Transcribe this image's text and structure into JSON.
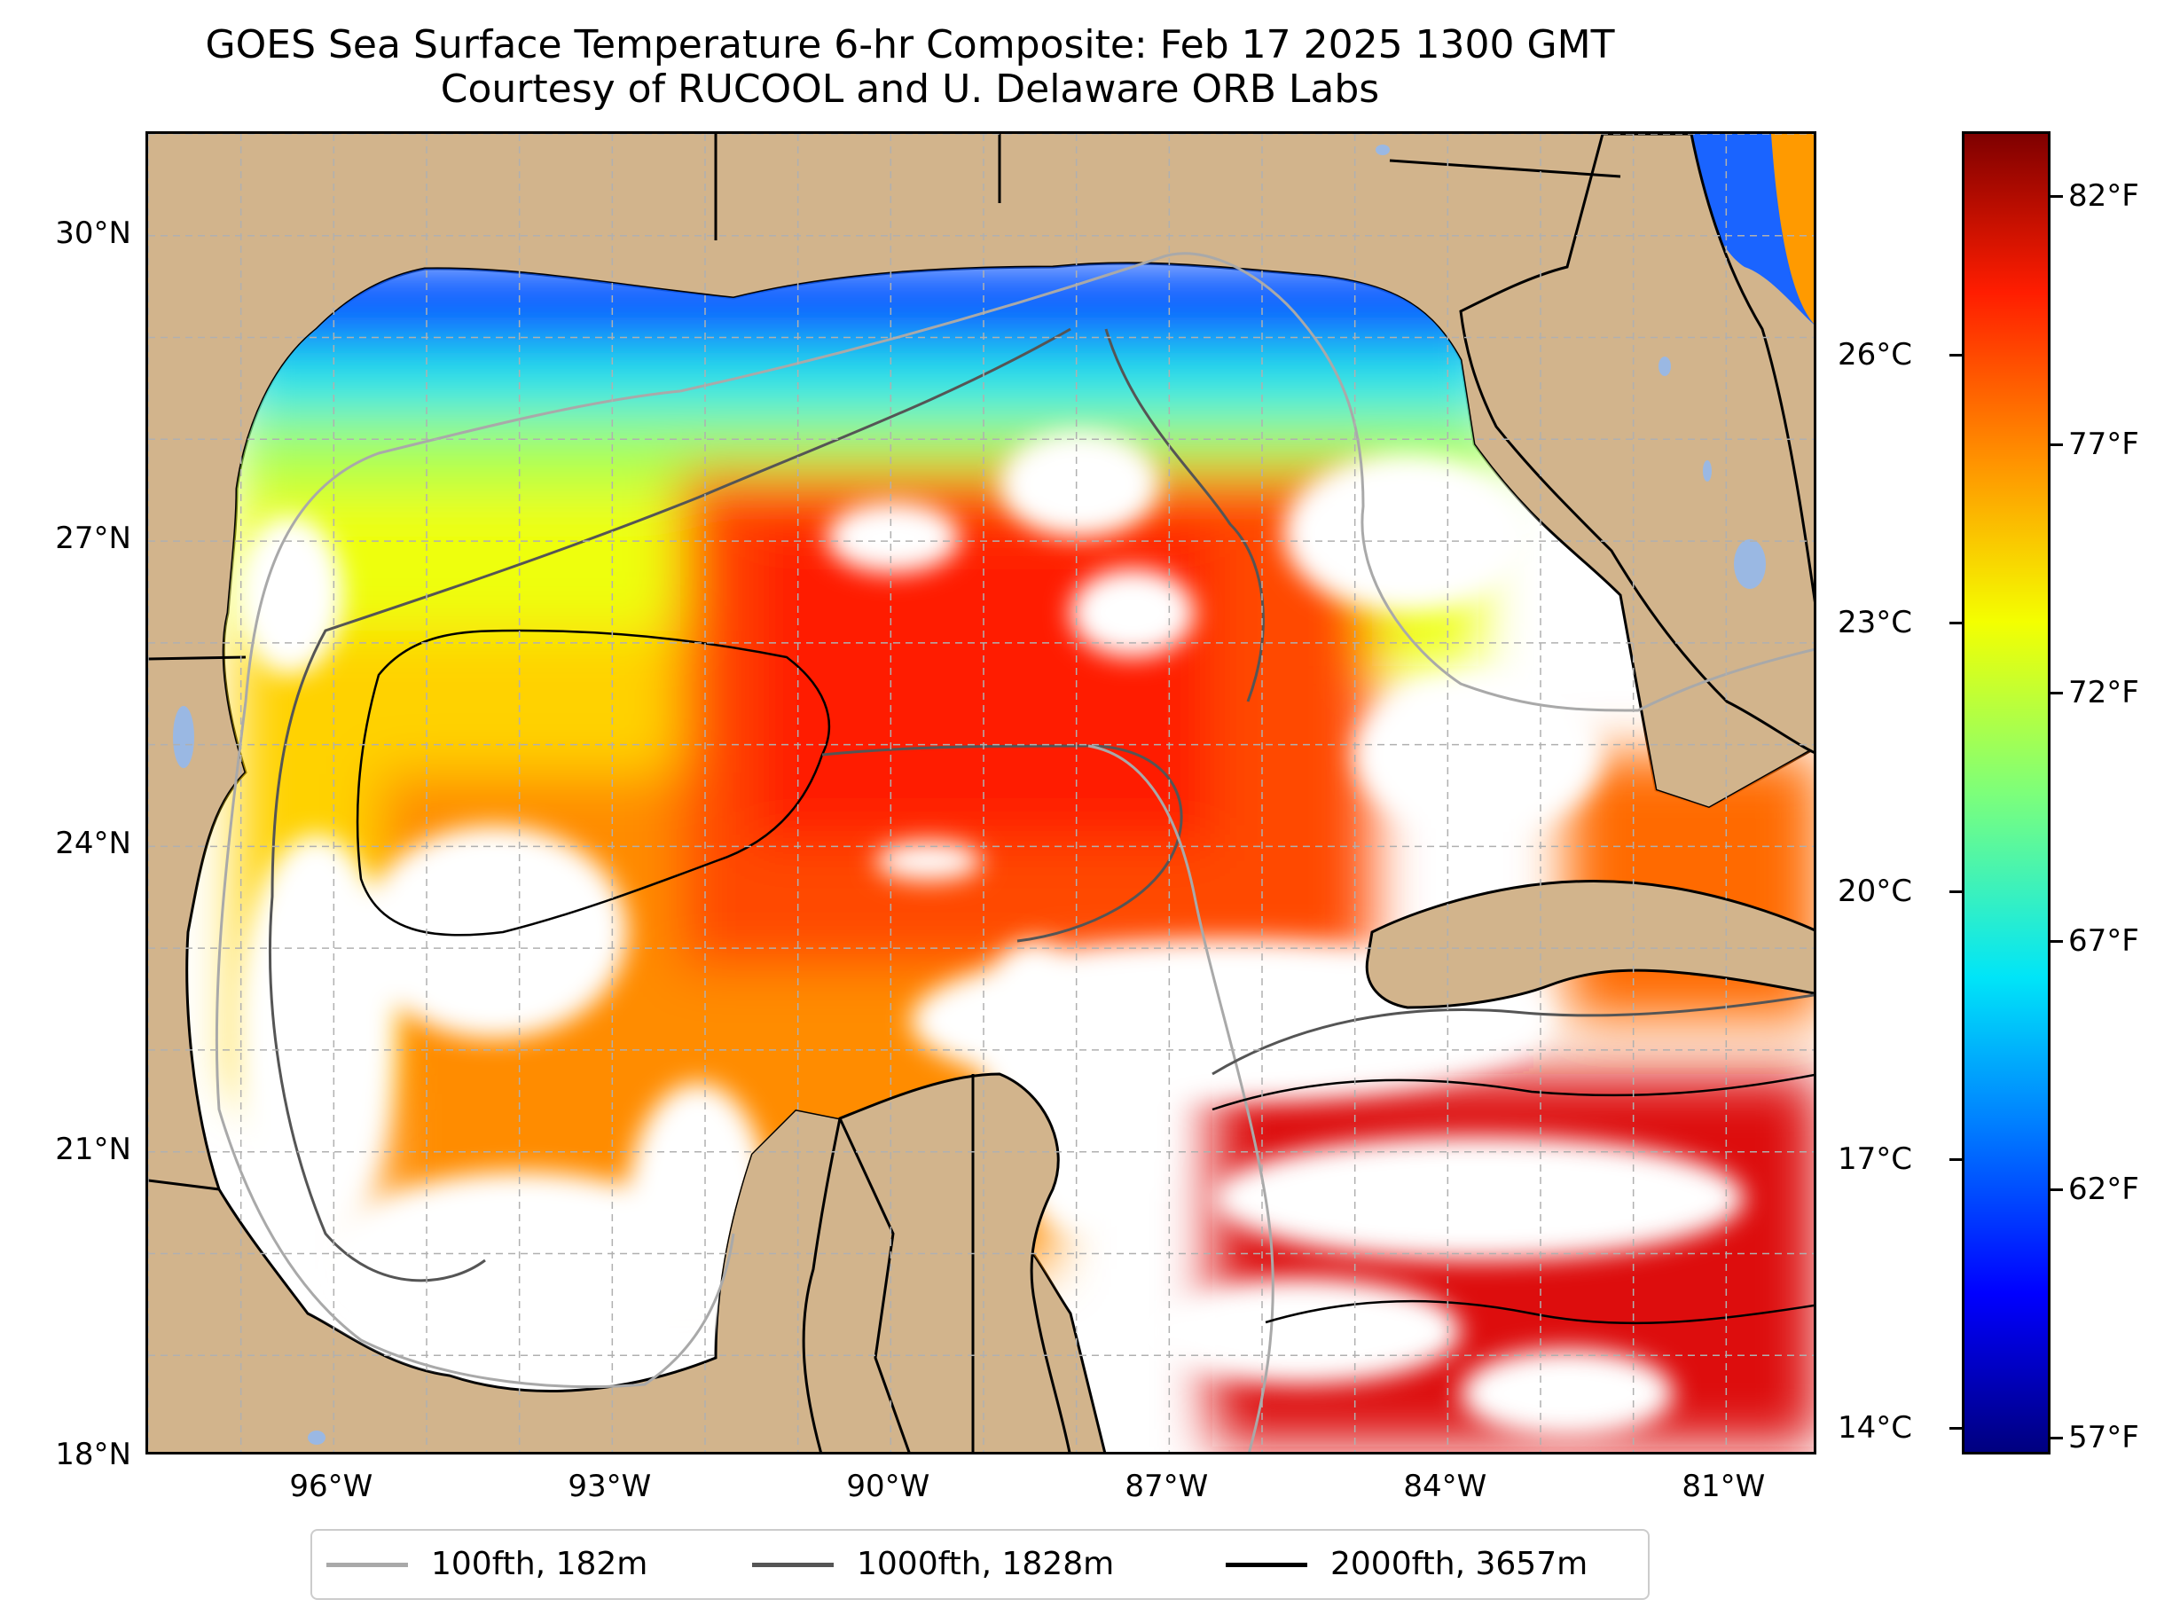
{
  "title": {
    "line1": "GOES Sea Surface Temperature 6-hr Composite: Feb 17 2025 1300 GMT",
    "line2": "Courtesy of RUCOOL and U. Delaware ORB Labs"
  },
  "map": {
    "extent": {
      "lon": [
        -98,
        -80
      ],
      "lat": [
        18,
        31
      ]
    },
    "colors": {
      "land": "#d2b48c",
      "no_data": "#ffffff",
      "lakes": "#9ab8e3",
      "grid": "#b0b0b0"
    },
    "lat_ticks": [
      {
        "value": 30,
        "label": "30°N"
      },
      {
        "value": 27,
        "label": "27°N"
      },
      {
        "value": 24,
        "label": "24°N"
      },
      {
        "value": 21,
        "label": "21°N"
      },
      {
        "value": 18,
        "label": "18°N"
      }
    ],
    "lon_ticks": [
      {
        "value": -96,
        "label": "96°W"
      },
      {
        "value": -93,
        "label": "93°W"
      },
      {
        "value": -90,
        "label": "90°W"
      },
      {
        "value": -87,
        "label": "87°W"
      },
      {
        "value": -84,
        "label": "84°W"
      },
      {
        "value": -81,
        "label": "81°W"
      }
    ]
  },
  "colorbar": {
    "colormap": "jet",
    "celsius_range": [
      13.7,
      28.5
    ],
    "celsius_ticks": [
      {
        "value": 26,
        "label": "26°C"
      },
      {
        "value": 23,
        "label": "23°C"
      },
      {
        "value": 20,
        "label": "20°C"
      },
      {
        "value": 17,
        "label": "17°C"
      },
      {
        "value": 14,
        "label": "14°C"
      }
    ],
    "fahrenheit_ticks": [
      {
        "value": 82,
        "label": "82°F"
      },
      {
        "value": 77,
        "label": "77°F"
      },
      {
        "value": 72,
        "label": "72°F"
      },
      {
        "value": 67,
        "label": "67°F"
      },
      {
        "value": 62,
        "label": "62°F"
      },
      {
        "value": 57,
        "label": "57°F"
      }
    ]
  },
  "legend": {
    "items": [
      {
        "label": "100fth, 182m",
        "color": "#a9a9a9"
      },
      {
        "label": "1000fth, 1828m",
        "color": "#555555"
      },
      {
        "label": "2000fth, 3657m",
        "color": "#000000"
      }
    ]
  }
}
